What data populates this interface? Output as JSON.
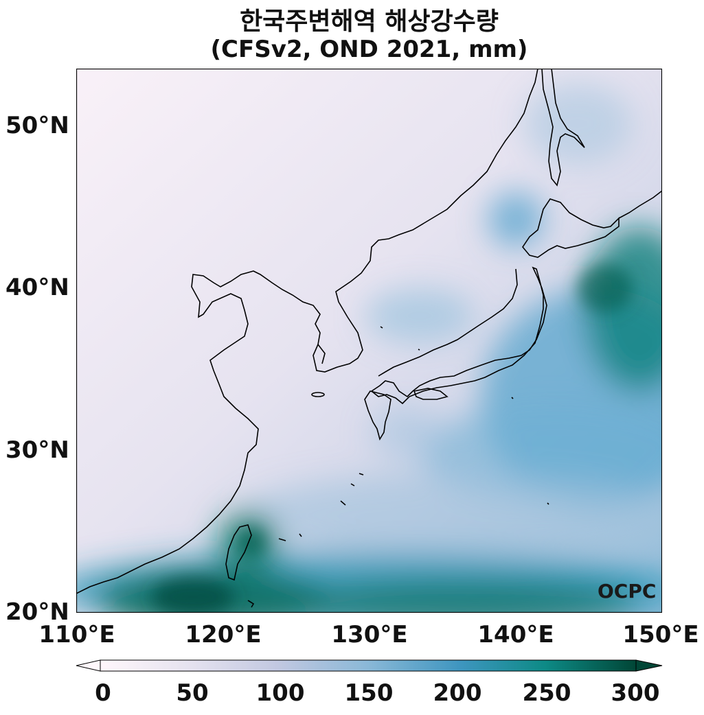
{
  "title": "한국주변해역 해상강수량",
  "subtitle": "(CFSv2, OND 2021, mm)",
  "logo": "OCPC",
  "axes": {
    "lat_ticks": [
      "50°N",
      "40°N",
      "30°N",
      "20°N"
    ],
    "lon_ticks": [
      "110°E",
      "120°E",
      "130°E",
      "140°E",
      "150°E"
    ],
    "lat_range": [
      20,
      53.5
    ],
    "lon_range": [
      110,
      150
    ]
  },
  "colorbar": {
    "ticks": [
      "0",
      "50",
      "100",
      "150",
      "200",
      "250",
      "300"
    ],
    "range": [
      0,
      300
    ],
    "colors": [
      "#fff7fb",
      "#e5e2ef",
      "#c2c8e1",
      "#8ab8d7",
      "#3f96c0",
      "#0d8a86",
      "#014636"
    ]
  }
}
